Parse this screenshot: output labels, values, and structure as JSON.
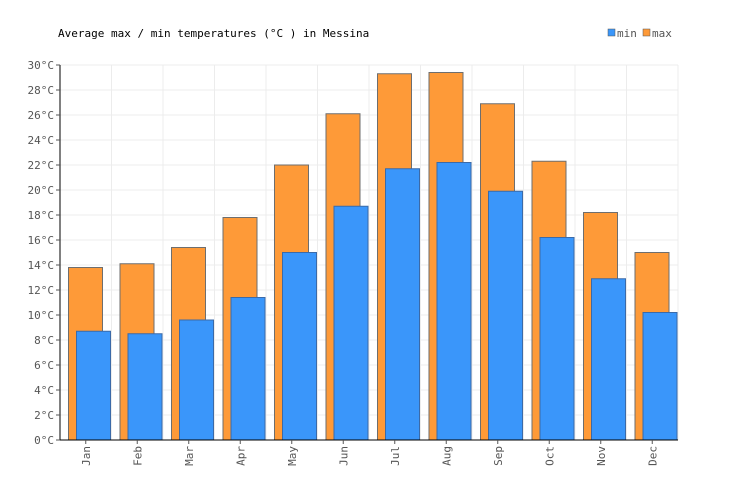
{
  "chart_data": {
    "type": "bar",
    "title": "Average max / min temperatures (°C ) in Messina",
    "categories": [
      "Jan",
      "Feb",
      "Mar",
      "Apr",
      "May",
      "Jun",
      "Jul",
      "Aug",
      "Sep",
      "Oct",
      "Nov",
      "Dec"
    ],
    "series": [
      {
        "name": "min",
        "color": "#3a96fa",
        "values": [
          8.7,
          8.5,
          9.6,
          11.4,
          15.0,
          18.7,
          21.7,
          22.2,
          19.9,
          16.2,
          12.9,
          10.2
        ]
      },
      {
        "name": "max",
        "color": "#fe9a38",
        "values": [
          13.8,
          14.1,
          15.4,
          17.8,
          22.0,
          26.1,
          29.3,
          29.4,
          26.9,
          22.3,
          18.2,
          15.0
        ]
      }
    ],
    "ylim": [
      0,
      30
    ],
    "ytick_step": 2,
    "ytick_suffix": "°C",
    "grid": true,
    "legend": "top-right",
    "xlabel": "",
    "ylabel": ""
  }
}
